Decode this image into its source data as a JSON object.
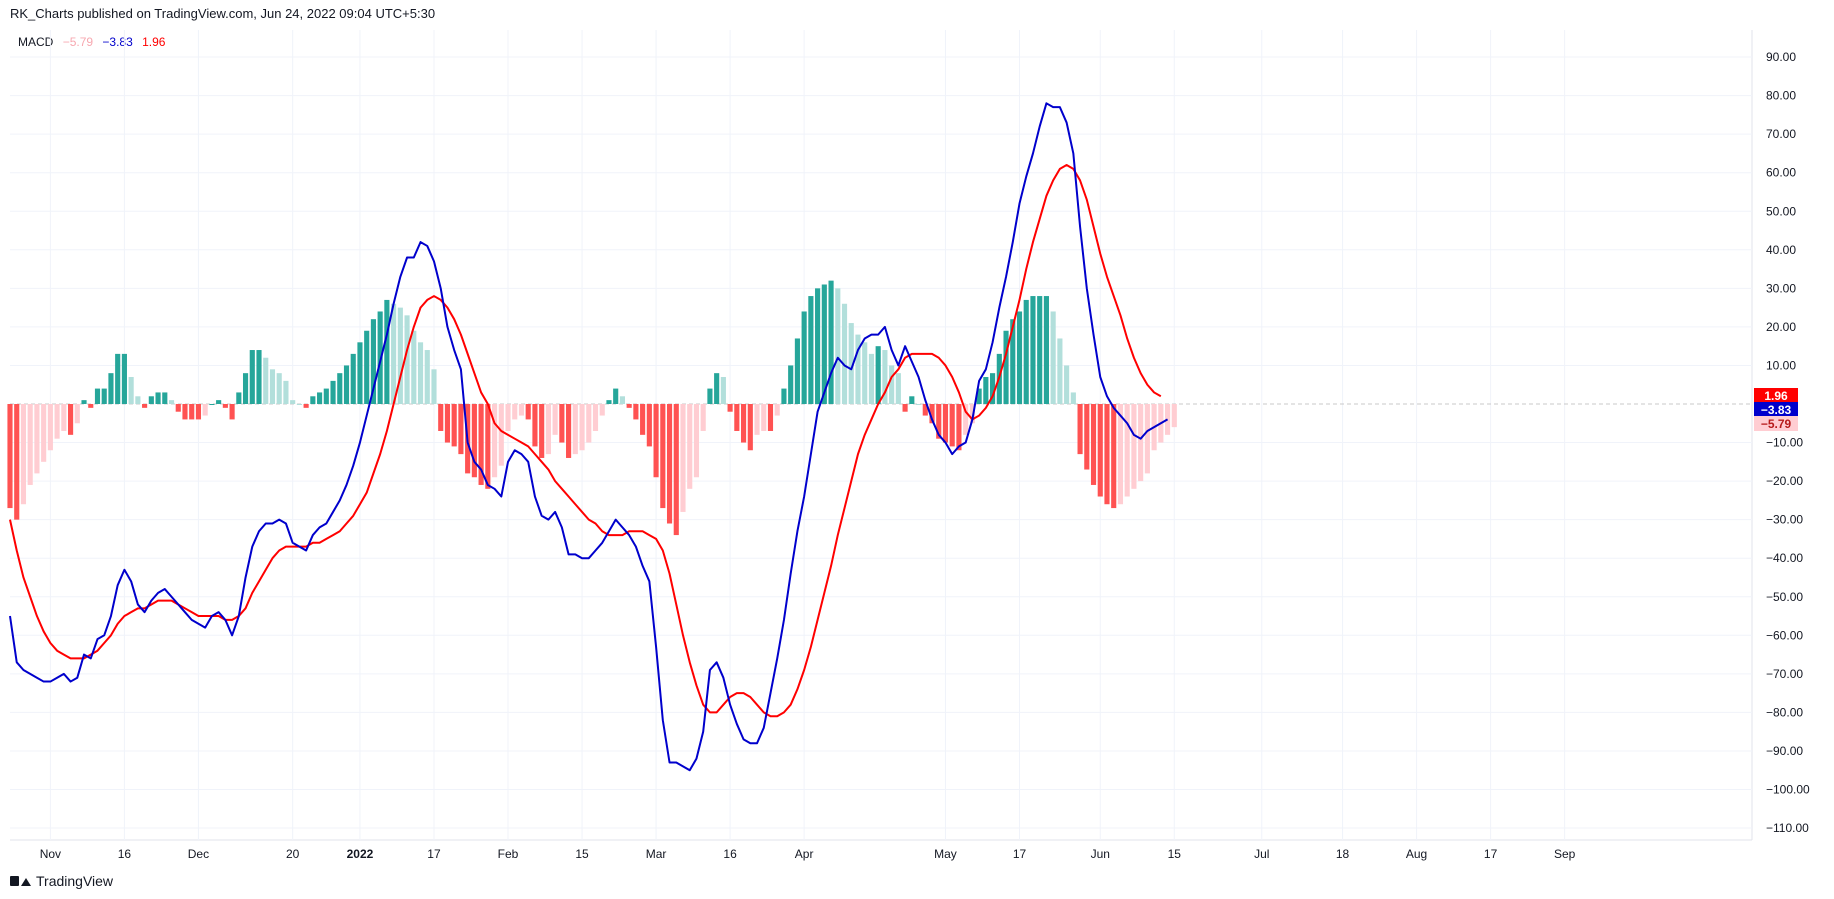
{
  "header": {
    "text": "RK_Charts published on TradingView.com, Jun 24, 2022 09:04 UTC+5:30"
  },
  "legend": {
    "name": "MACD",
    "hist_value": "−5.79",
    "macd_value": "−3.83",
    "signal_value": "1.96"
  },
  "footer": {
    "brand": "TradingView",
    "logo_icon": "tradingview-logo-icon"
  },
  "colors": {
    "macd": "#0000cc",
    "signal": "#ff0000",
    "hist_up_strong": "#26a69a",
    "hist_up_weak": "#b2dfdb",
    "hist_down_strong": "#ff5252",
    "hist_down_weak": "#ffcdd2",
    "grid": "#f0f3fa",
    "zero_line": "#c9c9c9"
  },
  "price_scale_badges": [
    {
      "label": "1.96",
      "value": 1.96,
      "color": "#ff0000"
    },
    {
      "label": "−3.83",
      "value": -3.83,
      "color": "#0000cc"
    },
    {
      "label": "−5.79",
      "value": -5.79,
      "color": "#ffcdd2",
      "text_color": "#b71c1c"
    }
  ],
  "chart_data": {
    "type": "line",
    "title": "",
    "indicator": "MACD",
    "ylim": [
      -110,
      90
    ],
    "yticks": [
      90,
      80,
      70,
      60,
      50,
      40,
      30,
      20,
      10,
      0,
      -10,
      -20,
      -30,
      -40,
      -50,
      -60,
      -70,
      -80,
      -90,
      -100,
      -110
    ],
    "ytick_labels": [
      "90.00",
      "80.00",
      "70.00",
      "60.00",
      "50.00",
      "40.00",
      "30.00",
      "20.00",
      "10.00",
      "",
      "−10.00",
      "−20.00",
      "−30.00",
      "−40.00",
      "−50.00",
      "−60.00",
      "−70.00",
      "−80.00",
      "−90.00",
      "−100.00",
      "−110.00"
    ],
    "grid": true,
    "bar_count_span": 227,
    "xticks": [
      {
        "label": "Nov",
        "index": 6,
        "bold": false
      },
      {
        "label": "16",
        "index": 17,
        "bold": false
      },
      {
        "label": "Dec",
        "index": 28,
        "bold": false
      },
      {
        "label": "20",
        "index": 42,
        "bold": false
      },
      {
        "label": "2022",
        "index": 52,
        "bold": true
      },
      {
        "label": "17",
        "index": 63,
        "bold": false
      },
      {
        "label": "Feb",
        "index": 74,
        "bold": false
      },
      {
        "label": "15",
        "index": 85,
        "bold": false
      },
      {
        "label": "Mar",
        "index": 96,
        "bold": false
      },
      {
        "label": "16",
        "index": 107,
        "bold": false
      },
      {
        "label": "Apr",
        "index": 118,
        "bold": false
      },
      {
        "label": "May",
        "index": 139,
        "bold": false
      },
      {
        "label": "17",
        "index": 150,
        "bold": false
      },
      {
        "label": "Jun",
        "index": 162,
        "bold": false
      },
      {
        "label": "15",
        "index": 173,
        "bold": false
      },
      {
        "label": "Jul",
        "index": 186,
        "bold": false
      },
      {
        "label": "18",
        "index": 198,
        "bold": false
      },
      {
        "label": "Aug",
        "index": 209,
        "bold": false
      },
      {
        "label": "17",
        "index": 220,
        "bold": false
      },
      {
        "label": "Sep",
        "index": 231,
        "bold": false
      }
    ],
    "series": [
      {
        "name": "MACD",
        "role": "macd",
        "values": [
          -55,
          -67,
          -69,
          -70,
          -71,
          -72,
          -72,
          -71,
          -70,
          -72,
          -71,
          -65,
          -66,
          -61,
          -60,
          -55,
          -47,
          -43,
          -46,
          -52,
          -54,
          -51,
          -49,
          -48,
          -50,
          -52,
          -54,
          -56,
          -57,
          -58,
          -55,
          -54,
          -56,
          -60,
          -55,
          -45,
          -37,
          -33,
          -31,
          -31,
          -30,
          -31,
          -36,
          -37,
          -38,
          -34,
          -32,
          -31,
          -28,
          -25,
          -21,
          -16,
          -10,
          -3,
          4,
          11,
          18,
          26,
          33,
          38,
          38,
          42,
          41,
          37,
          30,
          20,
          14,
          9,
          -10,
          -15,
          -17,
          -21,
          -22,
          -24,
          -15,
          -12,
          -13,
          -15,
          -24,
          -29,
          -30,
          -28,
          -32,
          -39,
          -39,
          -40,
          -40,
          -38,
          -36,
          -33,
          -30,
          -32,
          -34,
          -37,
          -42,
          -46,
          -63,
          -82,
          -93,
          -93,
          -94,
          -95,
          -92,
          -85,
          -69,
          -67,
          -71,
          -78,
          -83,
          -87,
          -88,
          -88,
          -84,
          -75,
          -66,
          -56,
          -44,
          -33,
          -24,
          -13,
          -2,
          3,
          8,
          12,
          10,
          9,
          14,
          17,
          18,
          18,
          20,
          14,
          10,
          15,
          11,
          7,
          1,
          -4,
          -8,
          -10,
          -13,
          -11,
          -10,
          -4,
          6,
          9,
          16,
          25,
          33,
          42,
          52,
          59,
          65,
          72,
          78,
          77,
          77,
          73,
          65,
          46,
          30,
          18,
          7,
          2,
          -1,
          -3,
          -5,
          -8,
          -9,
          -7,
          -6,
          -5,
          -4
        ]
      },
      {
        "name": "Signal",
        "role": "signal",
        "values": [
          -30,
          -38,
          -45,
          -50,
          -55,
          -59,
          -62,
          -64,
          -65,
          -66,
          -66,
          -66,
          -65,
          -64,
          -62,
          -60,
          -57,
          -55,
          -54,
          -53,
          -53,
          -52,
          -51,
          -51,
          -51,
          -52,
          -53,
          -54,
          -55,
          -55,
          -55,
          -55,
          -56,
          -56,
          -55,
          -53,
          -49,
          -46,
          -43,
          -40,
          -38,
          -37,
          -37,
          -37,
          -37,
          -36,
          -36,
          -35,
          -34,
          -33,
          -31,
          -29,
          -26,
          -23,
          -18,
          -13,
          -7,
          0,
          7,
          14,
          20,
          25,
          27,
          28,
          27,
          25,
          22,
          18,
          13,
          8,
          3,
          0,
          -5,
          -7,
          -8,
          -9,
          -10,
          -11,
          -13,
          -15,
          -17,
          -20,
          -22,
          -24,
          -26,
          -28,
          -30,
          -31,
          -33,
          -34,
          -34,
          -34,
          -33,
          -33,
          -33,
          -34,
          -35,
          -38,
          -44,
          -52,
          -60,
          -67,
          -73,
          -78,
          -80,
          -80,
          -78,
          -76,
          -75,
          -75,
          -76,
          -78,
          -80,
          -81,
          -81,
          -80,
          -78,
          -74,
          -69,
          -63,
          -56,
          -49,
          -42,
          -34,
          -27,
          -20,
          -13,
          -8,
          -4,
          0,
          3,
          7,
          9,
          12,
          13,
          13,
          13,
          13,
          12,
          10,
          7,
          3,
          -2,
          -4,
          -3,
          -1,
          2,
          7,
          13,
          20,
          27,
          35,
          42,
          48,
          54,
          58,
          61,
          62,
          61,
          58,
          53,
          46,
          39,
          33,
          28,
          23,
          17,
          12,
          8,
          5,
          3,
          2
        ]
      },
      {
        "name": "Histogram",
        "role": "histogram",
        "values": [
          -27,
          -30,
          -26,
          -21,
          -18,
          -15,
          -12,
          -9,
          -7,
          -8,
          -5,
          1,
          -1,
          4,
          4,
          8,
          13,
          13,
          7,
          2,
          -1,
          2,
          3,
          3,
          1,
          -2,
          -4,
          -4,
          -4,
          -3,
          0,
          1,
          -1,
          -4,
          3,
          8,
          14,
          14,
          12,
          9,
          8,
          6,
          1,
          0,
          -1,
          2,
          3,
          4,
          6,
          8,
          10,
          13,
          16,
          19,
          22,
          24,
          27,
          26,
          25,
          23,
          19,
          16,
          14,
          9,
          -7,
          -10,
          -11,
          -13,
          -18,
          -19,
          -21,
          -22,
          -19,
          -16,
          -7,
          -4,
          -3,
          -4,
          -11,
          -14,
          -13,
          -8,
          -10,
          -14,
          -13,
          -12,
          -10,
          -7,
          -3,
          1,
          4,
          2,
          -1,
          -4,
          -8,
          -11,
          -19,
          -27,
          -31,
          -34,
          -28,
          -22,
          -19,
          -7,
          4,
          8,
          7,
          -2,
          -7,
          -10,
          -12,
          -8,
          -7,
          -7,
          -3,
          4,
          10,
          17,
          24,
          28,
          30,
          31,
          32,
          30,
          26,
          21,
          18,
          16,
          13,
          15,
          14,
          10,
          8,
          -2,
          2,
          0,
          -3,
          -5,
          -9,
          -10,
          -11,
          -12,
          -8,
          -5,
          4,
          7,
          8,
          13,
          19,
          22,
          24,
          27,
          28,
          28,
          28,
          24,
          17,
          10,
          3,
          -13,
          -17,
          -21,
          -24,
          -26,
          -27,
          -26,
          -24,
          -22,
          -20,
          -18,
          -12,
          -10,
          -8,
          -6
        ]
      }
    ]
  }
}
